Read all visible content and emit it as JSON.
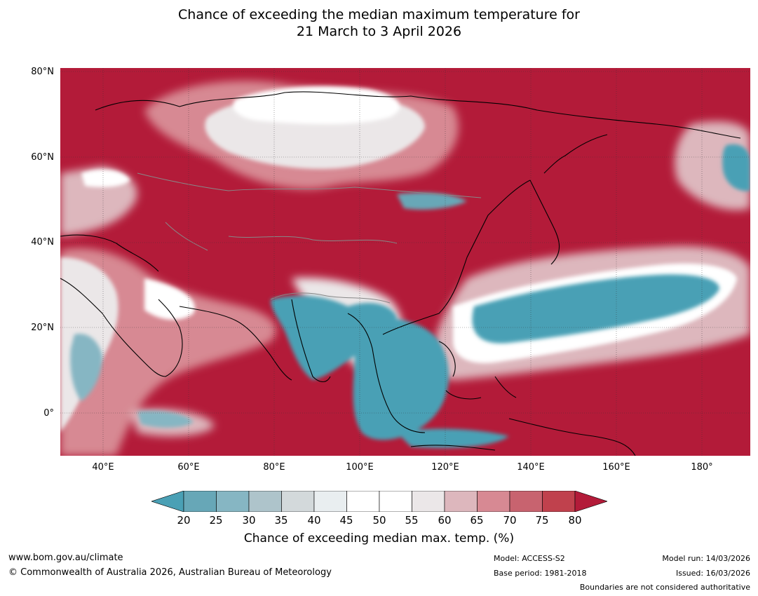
{
  "title": {
    "line1": "Chance of exceeding the median maximum temperature for",
    "line2": "21 March to 3 April 2026"
  },
  "map": {
    "latitude_labels": [
      "80°N",
      "60°N",
      "40°N",
      "20°N",
      "0°"
    ],
    "longitude_labels": [
      "40°E",
      "60°E",
      "80°E",
      "100°E",
      "120°E",
      "140°E",
      "160°E",
      "180°"
    ],
    "extent": {
      "lon_min": 30,
      "lon_max": 191,
      "lat_min": -10,
      "lat_max": 81
    }
  },
  "colorbar": {
    "ticks": [
      "20",
      "25",
      "30",
      "35",
      "40",
      "45",
      "50",
      "55",
      "60",
      "65",
      "70",
      "75",
      "80"
    ],
    "colors": [
      "#4aa0b5",
      "#67a7b7",
      "#86b6c3",
      "#aec4cb",
      "#d3d9db",
      "#e9eef0",
      "#ffffff",
      "#ffffff",
      "#ebe7e8",
      "#ddb7bd",
      "#d78993",
      "#c8636f",
      "#c0414d",
      "#b31b39"
    ],
    "label": "Chance of exceeding median max. temp. (%)"
  },
  "footer": {
    "website": "www.bom.gov.au/climate",
    "copyright": "© Commonwealth of Australia 2026, Australian Bureau of Meteorology",
    "model": "Model: ACCESS-S2",
    "base_period": "Base period: 1981-2018",
    "model_run": "Model run: 14/03/2026",
    "issued": "Issued: 16/03/2026",
    "boundaries_note": "Boundaries are not considered authoritative"
  }
}
